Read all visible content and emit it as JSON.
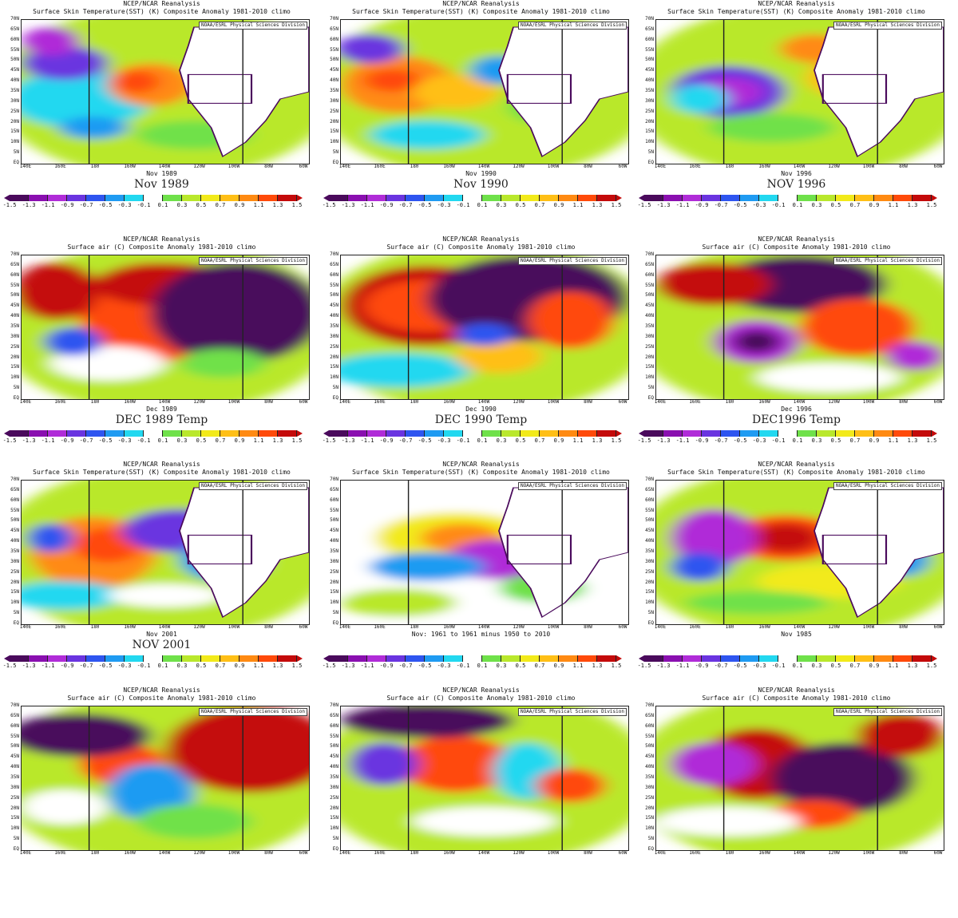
{
  "colors": {
    "scale": [
      "#4a0a5c",
      "#8a0fb0",
      "#b02cd8",
      "#6a34e0",
      "#2e55f0",
      "#1f9bf2",
      "#22d8f0",
      "#ffffff",
      "#6fe14a",
      "#b9e82c",
      "#f2ea1a",
      "#ffbf16",
      "#ff8a12",
      "#ff4a0a",
      "#c40a0a"
    ],
    "land": "#ffffff",
    "boundary": "#4a0a5c"
  },
  "scale_ticks": [
    "-1.5",
    "-1.3",
    "-1.1",
    "-0.9",
    "-0.7",
    "-0.5",
    "-0.3",
    "-0.1",
    "0.1",
    "0.3",
    "0.5",
    "0.7",
    "0.9",
    "1.1",
    "1.3",
    "1.5"
  ],
  "lat_ticks": [
    "70N",
    "65N",
    "60N",
    "55N",
    "50N",
    "45N",
    "40N",
    "35N",
    "30N",
    "25N",
    "20N",
    "15N",
    "10N",
    "5N",
    "EQ"
  ],
  "lon_ticks": [
    "140E",
    "160E",
    "180",
    "160W",
    "140W",
    "120W",
    "100W",
    "80W",
    "60W"
  ],
  "panels": [
    {
      "title1": "NCEP/NCAR Reanalysis",
      "title2": "Surface Skin Temperature(SST) (K) Composite Anomaly 1981-2010 climo",
      "credit": "NOAA/ESRL Physical Sciences Division",
      "period": "Nov 1989",
      "caption": "Nov 1989",
      "field_type": "sst"
    },
    {
      "title1": "NCEP/NCAR Reanalysis",
      "title2": "Surface Skin Temperature(SST) (K) Composite Anomaly 1981-2010 climo",
      "credit": "NOAA/ESRL Physical Sciences Division",
      "period": "Nov 1990",
      "caption": "Nov 1990",
      "field_type": "sst"
    },
    {
      "title1": "NCEP/NCAR Reanalysis",
      "title2": "Surface Skin Temperature(SST) (K) Composite Anomaly 1981-2010 climo",
      "credit": "NOAA/ESRL Physical Sciences Division",
      "period": "Nov 1996",
      "caption": "NOV 1996",
      "field_type": "sst"
    },
    {
      "title1": "NCEP/NCAR Reanalysis",
      "title2": "Surface air (C) Composite Anomaly 1981-2010 climo",
      "credit": "NOAA/ESRL Physical Sciences Division",
      "period": "Dec 1989",
      "caption": "DEC 1989 Temp",
      "field_type": "air"
    },
    {
      "title1": "NCEP/NCAR Reanalysis",
      "title2": "Surface air (C) Composite Anomaly 1981-2010 climo",
      "credit": "NOAA/ESRL Physical Sciences Division",
      "period": "Dec 1990",
      "caption": "DEC 1990 Temp",
      "field_type": "air"
    },
    {
      "title1": "NCEP/NCAR Reanalysis",
      "title2": "Surface air (C) Composite Anomaly 1981-2010 climo",
      "credit": "NOAA/ESRL Physical Sciences Division",
      "period": "Dec 1996",
      "caption": "DEC1996 Temp",
      "field_type": "air"
    },
    {
      "title1": "NCEP/NCAR Reanalysis",
      "title2": "Surface Skin Temperature(SST) (K) Composite Anomaly 1981-2010 climo",
      "credit": "NOAA/ESRL Physical Sciences Division",
      "period": "Nov 2001",
      "caption": "NOV 2001",
      "field_type": "sst"
    },
    {
      "title1": "NCEP/NCAR Reanalysis",
      "title2": "Surface Skin Temperature(SST) (K) Composite Anomaly 1981-2010 climo",
      "credit": "NOAA/ESRL Physical Sciences Division",
      "period": "Nov: 1961 to 1961 minus 1950 to 2010",
      "caption": "",
      "field_type": "sst"
    },
    {
      "title1": "NCEP/NCAR Reanalysis",
      "title2": "Surface Skin Temperature(SST) (K) Composite Anomaly 1981-2010 climo",
      "credit": "NOAA/ESRL Physical Sciences Division",
      "period": "Nov 1985",
      "caption": "",
      "field_type": "sst"
    },
    {
      "title1": "NCEP/NCAR Reanalysis",
      "title2": "Surface air (C) Composite Anomaly 1981-2010 climo",
      "credit": "NOAA/ESRL Physical Sciences Division",
      "period": "",
      "caption": "",
      "field_type": "air"
    },
    {
      "title1": "NCEP/NCAR Reanalysis",
      "title2": "Surface air (C) Composite Anomaly 1981-2010 climo",
      "credit": "NOAA/ESRL Physical Sciences Division",
      "period": "",
      "caption": "",
      "field_type": "air"
    },
    {
      "title1": "NCEP/NCAR Reanalysis",
      "title2": "Surface air (C) Composite Anomaly 1981-2010 climo",
      "credit": "NOAA/ESRL Physical Sciences Division",
      "period": "",
      "caption": "",
      "field_type": "air"
    }
  ]
}
